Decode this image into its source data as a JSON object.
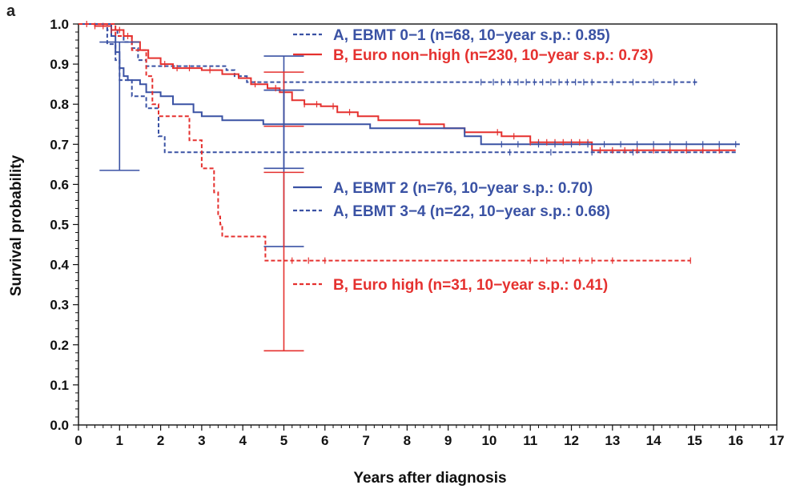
{
  "panel_label": "a",
  "colors": {
    "A": "#3a52a4",
    "B": "#e5312f",
    "axis": "#111111"
  },
  "chart_data": {
    "type": "line",
    "chart_kind": "Kaplan-Meier survival curves",
    "xlabel": "Years after diagnosis",
    "ylabel": "Survival probability",
    "xlim": [
      0,
      17
    ],
    "ylim": [
      0,
      1
    ],
    "xticks": [
      "0",
      "1",
      "2",
      "3",
      "4",
      "5",
      "6",
      "7",
      "8",
      "9",
      "10",
      "11",
      "12",
      "13",
      "14",
      "15",
      "16",
      "17"
    ],
    "yticks": [
      "0.0",
      "0.1",
      "0.2",
      "0.3",
      "0.4",
      "0.5",
      "0.6",
      "0.7",
      "0.8",
      "0.9",
      "1.0"
    ],
    "grid": false,
    "series": [
      {
        "name": "A, EBMT 0−1 (n=68, 10−year s.p.: 0.85)",
        "group": "A",
        "color": "#3a52a4",
        "dash": "dashed",
        "steps": [
          [
            0,
            1.0
          ],
          [
            0.7,
            0.985
          ],
          [
            0.95,
            0.97
          ],
          [
            1.1,
            0.955
          ],
          [
            1.3,
            0.94
          ],
          [
            1.45,
            0.91
          ],
          [
            1.65,
            0.895
          ],
          [
            3.6,
            0.885
          ],
          [
            3.8,
            0.87
          ],
          [
            4.1,
            0.855
          ],
          [
            15.1,
            0.855
          ]
        ],
        "censor_x": [
          9.8,
          10.1,
          10.3,
          10.5,
          10.7,
          10.9,
          11.1,
          11.3,
          11.5,
          11.7,
          11.9,
          12.1,
          12.3,
          12.5,
          13.0,
          13.5,
          14.0,
          14.5,
          15.0
        ],
        "errorbars": [
          {
            "x": 5,
            "lower": 0.75,
            "upper": 0.92
          }
        ]
      },
      {
        "name": "B, Euro non−high (n=230, 10−year s.p.: 0.73)",
        "group": "B",
        "color": "#e5312f",
        "dash": "solid",
        "steps": [
          [
            0,
            1.0
          ],
          [
            0.4,
            0.995
          ],
          [
            0.8,
            0.985
          ],
          [
            1.1,
            0.97
          ],
          [
            1.3,
            0.955
          ],
          [
            1.5,
            0.935
          ],
          [
            1.7,
            0.915
          ],
          [
            2.0,
            0.9
          ],
          [
            2.3,
            0.89
          ],
          [
            3.0,
            0.885
          ],
          [
            3.5,
            0.875
          ],
          [
            3.9,
            0.865
          ],
          [
            4.2,
            0.85
          ],
          [
            4.6,
            0.84
          ],
          [
            4.9,
            0.83
          ],
          [
            5.2,
            0.81
          ],
          [
            5.5,
            0.8
          ],
          [
            5.9,
            0.795
          ],
          [
            6.3,
            0.78
          ],
          [
            6.8,
            0.77
          ],
          [
            7.3,
            0.76
          ],
          [
            8.3,
            0.75
          ],
          [
            8.9,
            0.74
          ],
          [
            9.4,
            0.73
          ],
          [
            10.3,
            0.72
          ],
          [
            11.0,
            0.705
          ],
          [
            12.5,
            0.685
          ],
          [
            16,
            0.685
          ]
        ],
        "censor_x": [
          0.2,
          0.4,
          0.6,
          0.8,
          1.0,
          1.2,
          2.1,
          2.4,
          2.7,
          3.2,
          4.3,
          4.8,
          5.5,
          5.8,
          6.2,
          6.6,
          10.2,
          10.6,
          11.0,
          11.2,
          11.4,
          11.6,
          11.8,
          12.0,
          12.2,
          12.4,
          12.7,
          13.0,
          13.3,
          13.6,
          14.0,
          14.4,
          14.8,
          15.2,
          15.6
        ],
        "errorbars": [
          {
            "x": 5,
            "lower": 0.745,
            "upper": 0.88
          }
        ]
      },
      {
        "name": "A, EBMT 2 (n=76, 10−year s.p.: 0.70)",
        "group": "A",
        "color": "#3a52a4",
        "dash": "solid",
        "steps": [
          [
            0,
            1.0
          ],
          [
            0.8,
            0.97
          ],
          [
            0.9,
            0.93
          ],
          [
            1.0,
            0.89
          ],
          [
            1.1,
            0.87
          ],
          [
            1.2,
            0.86
          ],
          [
            1.5,
            0.85
          ],
          [
            1.65,
            0.83
          ],
          [
            2.0,
            0.82
          ],
          [
            2.3,
            0.8
          ],
          [
            2.8,
            0.78
          ],
          [
            3.0,
            0.77
          ],
          [
            3.5,
            0.76
          ],
          [
            4.5,
            0.75
          ],
          [
            7.1,
            0.74
          ],
          [
            9.4,
            0.72
          ],
          [
            9.8,
            0.7
          ],
          [
            16.1,
            0.7
          ]
        ],
        "censor_x": [
          10.3,
          10.7,
          11.2,
          11.6,
          12.0,
          12.4,
          12.8,
          13.2,
          13.6,
          14.0,
          14.4,
          14.8,
          15.2,
          15.6,
          16.0
        ],
        "errorbars": [
          {
            "x": 1,
            "lower": 0.635,
            "upper": 0.955
          },
          {
            "x": 5,
            "lower": 0.64,
            "upper": 0.835
          }
        ]
      },
      {
        "name": "A, EBMT 3−4 (n=22, 10−year s.p.: 0.68)",
        "group": "A",
        "color": "#3a52a4",
        "dash": "dashed",
        "steps": [
          [
            0,
            1.0
          ],
          [
            0.7,
            0.95
          ],
          [
            0.9,
            0.91
          ],
          [
            1.0,
            0.86
          ],
          [
            1.3,
            0.82
          ],
          [
            1.65,
            0.79
          ],
          [
            1.95,
            0.72
          ],
          [
            2.1,
            0.68
          ],
          [
            16,
            0.68
          ]
        ],
        "censor_x": [
          10.5,
          11.5,
          12.5,
          13.5
        ],
        "errorbars": [
          {
            "x": 5,
            "lower": 0.445,
            "upper": 0.835
          }
        ]
      },
      {
        "name": "B, Euro high (n=31, 10−year s.p.: 0.41)",
        "group": "B",
        "color": "#e5312f",
        "dash": "dashed",
        "steps": [
          [
            0,
            1.0
          ],
          [
            0.9,
            0.97
          ],
          [
            1.3,
            0.935
          ],
          [
            1.65,
            0.87
          ],
          [
            1.8,
            0.8
          ],
          [
            1.95,
            0.77
          ],
          [
            2.2,
            0.77
          ],
          [
            2.5,
            0.77
          ],
          [
            2.7,
            0.71
          ],
          [
            3.0,
            0.64
          ],
          [
            3.3,
            0.58
          ],
          [
            3.4,
            0.52
          ],
          [
            3.45,
            0.5
          ],
          [
            3.5,
            0.47
          ],
          [
            4.4,
            0.47
          ],
          [
            4.55,
            0.41
          ],
          [
            14.9,
            0.41
          ]
        ],
        "censor_x": [
          5.2,
          5.6,
          6.0,
          11.0,
          11.4,
          11.8,
          12.2,
          12.5,
          13.0,
          14.9
        ],
        "errorbars": [
          {
            "x": 5,
            "lower": 0.185,
            "upper": 0.63
          }
        ]
      }
    ],
    "legend_blocks": [
      {
        "placement": "top-right",
        "entries": [
          0,
          1
        ]
      },
      {
        "placement": "middle",
        "entries": [
          2,
          3
        ]
      },
      {
        "placement": "lower-middle",
        "entries": [
          4
        ]
      }
    ]
  }
}
